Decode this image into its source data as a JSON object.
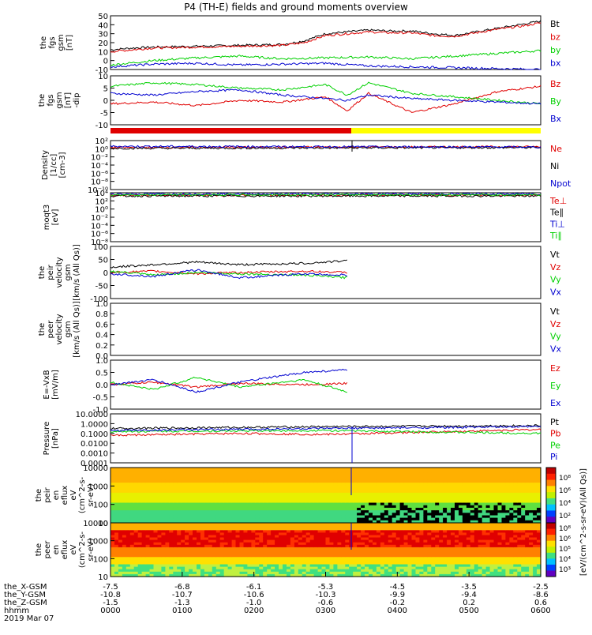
{
  "title": "P4 (TH-E) fields and ground moments overview",
  "date": "2019 Mar 07",
  "colors": {
    "black": "#000000",
    "red": "#e00000",
    "green": "#00d000",
    "blue": "#0000d0",
    "yellow": "#ffff00"
  },
  "chart_data": [
    {
      "type": "line",
      "ylabel_lines": [
        "the",
        "fgs",
        "gsm",
        "[nT]"
      ],
      "ticks": [
        "50",
        "40",
        "30",
        "20",
        "10",
        "0",
        "-10"
      ],
      "ylim": [
        -10,
        50
      ],
      "legend": [
        {
          "name": "Bt",
          "color": "black"
        },
        {
          "name": "bz",
          "color": "red"
        },
        {
          "name": "by",
          "color": "green"
        },
        {
          "name": "bx",
          "color": "blue"
        }
      ],
      "series": [
        {
          "name": "Bt",
          "color": "black",
          "x": [
            0,
            0.05,
            0.1,
            0.2,
            0.3,
            0.4,
            0.45,
            0.5,
            0.55,
            0.6,
            0.65,
            0.7,
            0.75,
            0.8,
            0.85,
            0.9,
            0.95,
            1
          ],
          "y": [
            12,
            14,
            15,
            16,
            17,
            18,
            22,
            30,
            32,
            34,
            33,
            33,
            30,
            28,
            32,
            36,
            40,
            44
          ]
        },
        {
          "name": "bz",
          "color": "red",
          "x": [
            0,
            0.05,
            0.1,
            0.2,
            0.3,
            0.4,
            0.45,
            0.5,
            0.55,
            0.6,
            0.65,
            0.7,
            0.75,
            0.8,
            0.85,
            0.9,
            0.95,
            1
          ],
          "y": [
            10,
            12,
            14,
            15,
            16,
            17,
            20,
            28,
            30,
            32,
            31,
            31,
            28,
            27,
            31,
            35,
            38,
            42
          ]
        },
        {
          "name": "by",
          "color": "green",
          "x": [
            0,
            0.1,
            0.2,
            0.3,
            0.4,
            0.5,
            0.6,
            0.7,
            0.8,
            0.9,
            1
          ],
          "y": [
            -5,
            0,
            3,
            5,
            2,
            3,
            4,
            2,
            5,
            8,
            11
          ]
        },
        {
          "name": "bx",
          "color": "blue",
          "x": [
            0,
            0.1,
            0.2,
            0.3,
            0.4,
            0.5,
            0.6,
            0.7,
            0.8,
            0.9,
            1
          ],
          "y": [
            -7,
            -4,
            -3,
            -5,
            -4,
            -3,
            -6,
            -7,
            -8,
            -9,
            -10
          ]
        }
      ]
    },
    {
      "type": "line",
      "ylabel_lines": [
        "the",
        "fgs",
        "gsm",
        "[nT]",
        "-dip"
      ],
      "ticks": [
        "10",
        "5",
        "0",
        "-5",
        "-10"
      ],
      "ylim": [
        -14,
        14
      ],
      "legend": [
        {
          "name": "Bz",
          "color": "red"
        },
        {
          "name": "By",
          "color": "green"
        },
        {
          "name": "Bx",
          "color": "blue"
        }
      ],
      "series": [
        {
          "name": "Bz",
          "color": "red",
          "x": [
            0,
            0.1,
            0.2,
            0.3,
            0.4,
            0.5,
            0.55,
            0.6,
            0.7,
            0.8,
            0.9,
            1
          ],
          "y": [
            -2,
            -1,
            -3,
            0,
            -1,
            2,
            -6,
            4,
            -7,
            -2,
            5,
            8
          ]
        },
        {
          "name": "By",
          "color": "green",
          "x": [
            0,
            0.1,
            0.2,
            0.3,
            0.4,
            0.5,
            0.55,
            0.6,
            0.7,
            0.8,
            0.9,
            1
          ],
          "y": [
            8,
            10,
            9,
            7,
            6,
            9,
            3,
            10,
            4,
            2,
            0,
            -2
          ]
        },
        {
          "name": "Bx",
          "color": "blue",
          "x": [
            0,
            0.1,
            0.2,
            0.3,
            0.4,
            0.5,
            0.55,
            0.6,
            0.7,
            0.8,
            0.9,
            1
          ],
          "y": [
            4,
            3,
            5,
            6,
            3,
            1,
            0,
            3,
            1,
            0,
            -1,
            -2
          ]
        }
      ]
    },
    {
      "type": "line",
      "ylabel_lines": [
        "Density",
        "[1/cc]",
        "[cm-3]"
      ],
      "ticks": [
        "10²",
        "10⁰",
        "10⁻²",
        "10⁻⁴",
        "10⁻⁶",
        "10⁻⁸",
        "10⁻¹⁰"
      ],
      "ylim": [
        -10,
        2
      ],
      "legend": [
        {
          "name": "Ne",
          "color": "red"
        },
        {
          "name": "Ni",
          "color": "black"
        },
        {
          "name": "Npot",
          "color": "blue"
        }
      ],
      "series": [
        {
          "name": "Ne",
          "color": "red",
          "x": [
            0,
            0.5,
            1
          ],
          "y": [
            0.3,
            0.4,
            0.5
          ]
        },
        {
          "name": "Ni",
          "color": "black",
          "x": [
            0,
            0.5,
            1
          ],
          "y": [
            0.1,
            0.2,
            0.3
          ]
        },
        {
          "name": "Npot",
          "color": "blue",
          "x": [
            0,
            0.5,
            1
          ],
          "y": [
            0.6,
            0.5,
            0.4
          ]
        }
      ]
    },
    {
      "type": "line",
      "ylabel_lines": [
        "moqt3",
        "[eV]"
      ],
      "ticks": [
        "10⁴",
        "10²",
        "10⁰",
        "10⁻²",
        "10⁻⁴",
        "10⁻⁶",
        "10⁻⁸"
      ],
      "ylim": [
        -8,
        4
      ],
      "legend": [
        {
          "name": "Te⊥",
          "color": "red"
        },
        {
          "name": "Te∥",
          "color": "black"
        },
        {
          "name": "Ti⊥",
          "color": "blue"
        },
        {
          "name": "Ti∥",
          "color": "green"
        }
      ],
      "series": [
        {
          "name": "Te⊥",
          "color": "red",
          "x": [
            0,
            1
          ],
          "y": [
            3.4,
            3.4
          ]
        },
        {
          "name": "Te∥",
          "color": "black",
          "x": [
            0,
            1
          ],
          "y": [
            3.2,
            3.2
          ]
        },
        {
          "name": "Ti⊥",
          "color": "blue",
          "x": [
            0,
            1
          ],
          "y": [
            3.7,
            3.7
          ]
        },
        {
          "name": "Ti∥",
          "color": "green",
          "x": [
            0,
            1
          ],
          "y": [
            3.5,
            3.5
          ]
        }
      ]
    },
    {
      "type": "line",
      "ylabel_lines": [
        "the",
        "peir",
        "velocity",
        "gsm",
        "[km/s (All Qs)]"
      ],
      "ticks": [
        "100",
        "50",
        "0",
        "-50",
        "-100"
      ],
      "ylim": [
        -100,
        100
      ],
      "legend": [
        {
          "name": "Vt",
          "color": "black"
        },
        {
          "name": "Vz",
          "color": "red"
        },
        {
          "name": "Vy",
          "color": "green"
        },
        {
          "name": "Vx",
          "color": "blue"
        }
      ],
      "series": [
        {
          "name": "Vt",
          "color": "black",
          "x": [
            0,
            0.1,
            0.2,
            0.3,
            0.45,
            0.55
          ],
          "y": [
            20,
            30,
            40,
            30,
            35,
            45
          ]
        },
        {
          "name": "Vz",
          "color": "red",
          "x": [
            0,
            0.1,
            0.2,
            0.3,
            0.45,
            0.55
          ],
          "y": [
            0,
            5,
            -5,
            0,
            5,
            0
          ]
        },
        {
          "name": "Vy",
          "color": "green",
          "x": [
            0,
            0.1,
            0.2,
            0.3,
            0.45,
            0.55
          ],
          "y": [
            5,
            -10,
            0,
            -5,
            -10,
            -20
          ]
        },
        {
          "name": "Vx",
          "color": "blue",
          "x": [
            0,
            0.1,
            0.2,
            0.3,
            0.45,
            0.55
          ],
          "y": [
            -5,
            -15,
            10,
            -20,
            -5,
            -10
          ]
        }
      ]
    },
    {
      "type": "line",
      "ylabel_lines": [
        "the",
        "peer",
        "velocity",
        "gsm",
        "[km/s (All Qs)]"
      ],
      "ticks": [
        "1.0",
        "0.8",
        "0.6",
        "0.4",
        "0.2",
        "0.0"
      ],
      "ylim": [
        0,
        1
      ],
      "legend": [
        {
          "name": "Vt",
          "color": "black"
        },
        {
          "name": "Vz",
          "color": "red"
        },
        {
          "name": "Vy",
          "color": "green"
        },
        {
          "name": "Vx",
          "color": "blue"
        }
      ],
      "series": []
    },
    {
      "type": "line",
      "ylabel_lines": [
        "E=-VxB",
        "[mV/m]"
      ],
      "ticks": [
        "1.0",
        "0.5",
        "0.0",
        "-0.5",
        "-1.0"
      ],
      "ylim": [
        -1,
        1
      ],
      "legend": [
        {
          "name": "Ez",
          "color": "red"
        },
        {
          "name": "Ey",
          "color": "green"
        },
        {
          "name": "Ex",
          "color": "blue"
        }
      ],
      "series": [
        {
          "name": "Ez",
          "color": "red",
          "x": [
            0,
            0.1,
            0.2,
            0.3,
            0.45,
            0.55
          ],
          "y": [
            0,
            0.1,
            -0.1,
            0.05,
            0,
            0.05
          ]
        },
        {
          "name": "Ey",
          "color": "green",
          "x": [
            0,
            0.1,
            0.2,
            0.3,
            0.45,
            0.55
          ],
          "y": [
            0.1,
            -0.2,
            0.3,
            -0.1,
            0.2,
            -0.3
          ]
        },
        {
          "name": "Ex",
          "color": "blue",
          "x": [
            0,
            0.1,
            0.2,
            0.3,
            0.45,
            0.55
          ],
          "y": [
            0,
            0.2,
            -0.3,
            0.1,
            0.5,
            0.6
          ]
        }
      ]
    },
    {
      "type": "line",
      "ylabel_lines": [
        "Pressure",
        "[nPa]"
      ],
      "ticks": [
        "10.0000",
        "1.0000",
        "0.1000",
        "0.0100",
        "0.0010",
        "0.0001"
      ],
      "ylim": [
        -4,
        1
      ],
      "legend": [
        {
          "name": "Pt",
          "color": "black"
        },
        {
          "name": "Pb",
          "color": "red"
        },
        {
          "name": "Pe",
          "color": "green"
        },
        {
          "name": "Pi",
          "color": "blue"
        }
      ],
      "series": [
        {
          "name": "Pt",
          "color": "black",
          "x": [
            0,
            0.5,
            1
          ],
          "y": [
            -0.5,
            -0.3,
            -0.2
          ]
        },
        {
          "name": "Pb",
          "color": "red",
          "x": [
            0,
            0.3,
            0.5,
            0.7,
            1
          ],
          "y": [
            -1.2,
            -1,
            -1.1,
            -0.9,
            -0.6
          ]
        },
        {
          "name": "Pe",
          "color": "green",
          "x": [
            0,
            0.5,
            1
          ],
          "y": [
            -0.8,
            -0.7,
            -1.0
          ]
        },
        {
          "name": "Pi",
          "color": "blue",
          "x": [
            0,
            0.5,
            1
          ],
          "y": [
            -0.7,
            -0.5,
            -0.3
          ]
        }
      ]
    },
    {
      "type": "heatmap",
      "ylabel_lines": [
        "the",
        "peir",
        "en",
        "eflux",
        "eV",
        "(cm^2-s-",
        "sr-eV)"
      ],
      "ticks": [
        "10000",
        "1000",
        "100",
        "10"
      ]
    },
    {
      "type": "heatmap",
      "ylabel_lines": [
        "the",
        "peer",
        "en",
        "eflux",
        "eV",
        "(cm^2-s-",
        "sr-eV)"
      ],
      "ticks": [
        "10000",
        "1000",
        "100",
        "10"
      ]
    }
  ],
  "colorbar_label": "[eV/(cm^2-s-sr-eV)(All Qs)]",
  "colorbar_ticks_top": [
    "10⁸",
    "10⁶",
    "10⁴",
    "10²"
  ],
  "colorbar_ticks_bottom": [
    "10⁸",
    "10⁶",
    "10⁵",
    "10⁴",
    "10³"
  ],
  "xaxis": {
    "row_labels": [
      "the_X-GSM",
      "the_Y-GSM",
      "the_Z-GSM",
      "hhmm"
    ],
    "columns": [
      [
        "-7.5",
        "-10.8",
        "-1.5",
        "0000"
      ],
      [
        "-6.8",
        "-10.7",
        "-1.3",
        "0100"
      ],
      [
        "-6.1",
        "-10.6",
        "-1.0",
        "0200"
      ],
      [
        "-5.3",
        "-10.3",
        "-0.6",
        "0300"
      ],
      [
        "-4.5",
        "-9.9",
        "-0.2",
        "0400"
      ],
      [
        "-3.5",
        "-9.4",
        "0.2",
        "0500"
      ],
      [
        "-2.5",
        "-8.6",
        "0.6",
        "0600"
      ]
    ]
  }
}
